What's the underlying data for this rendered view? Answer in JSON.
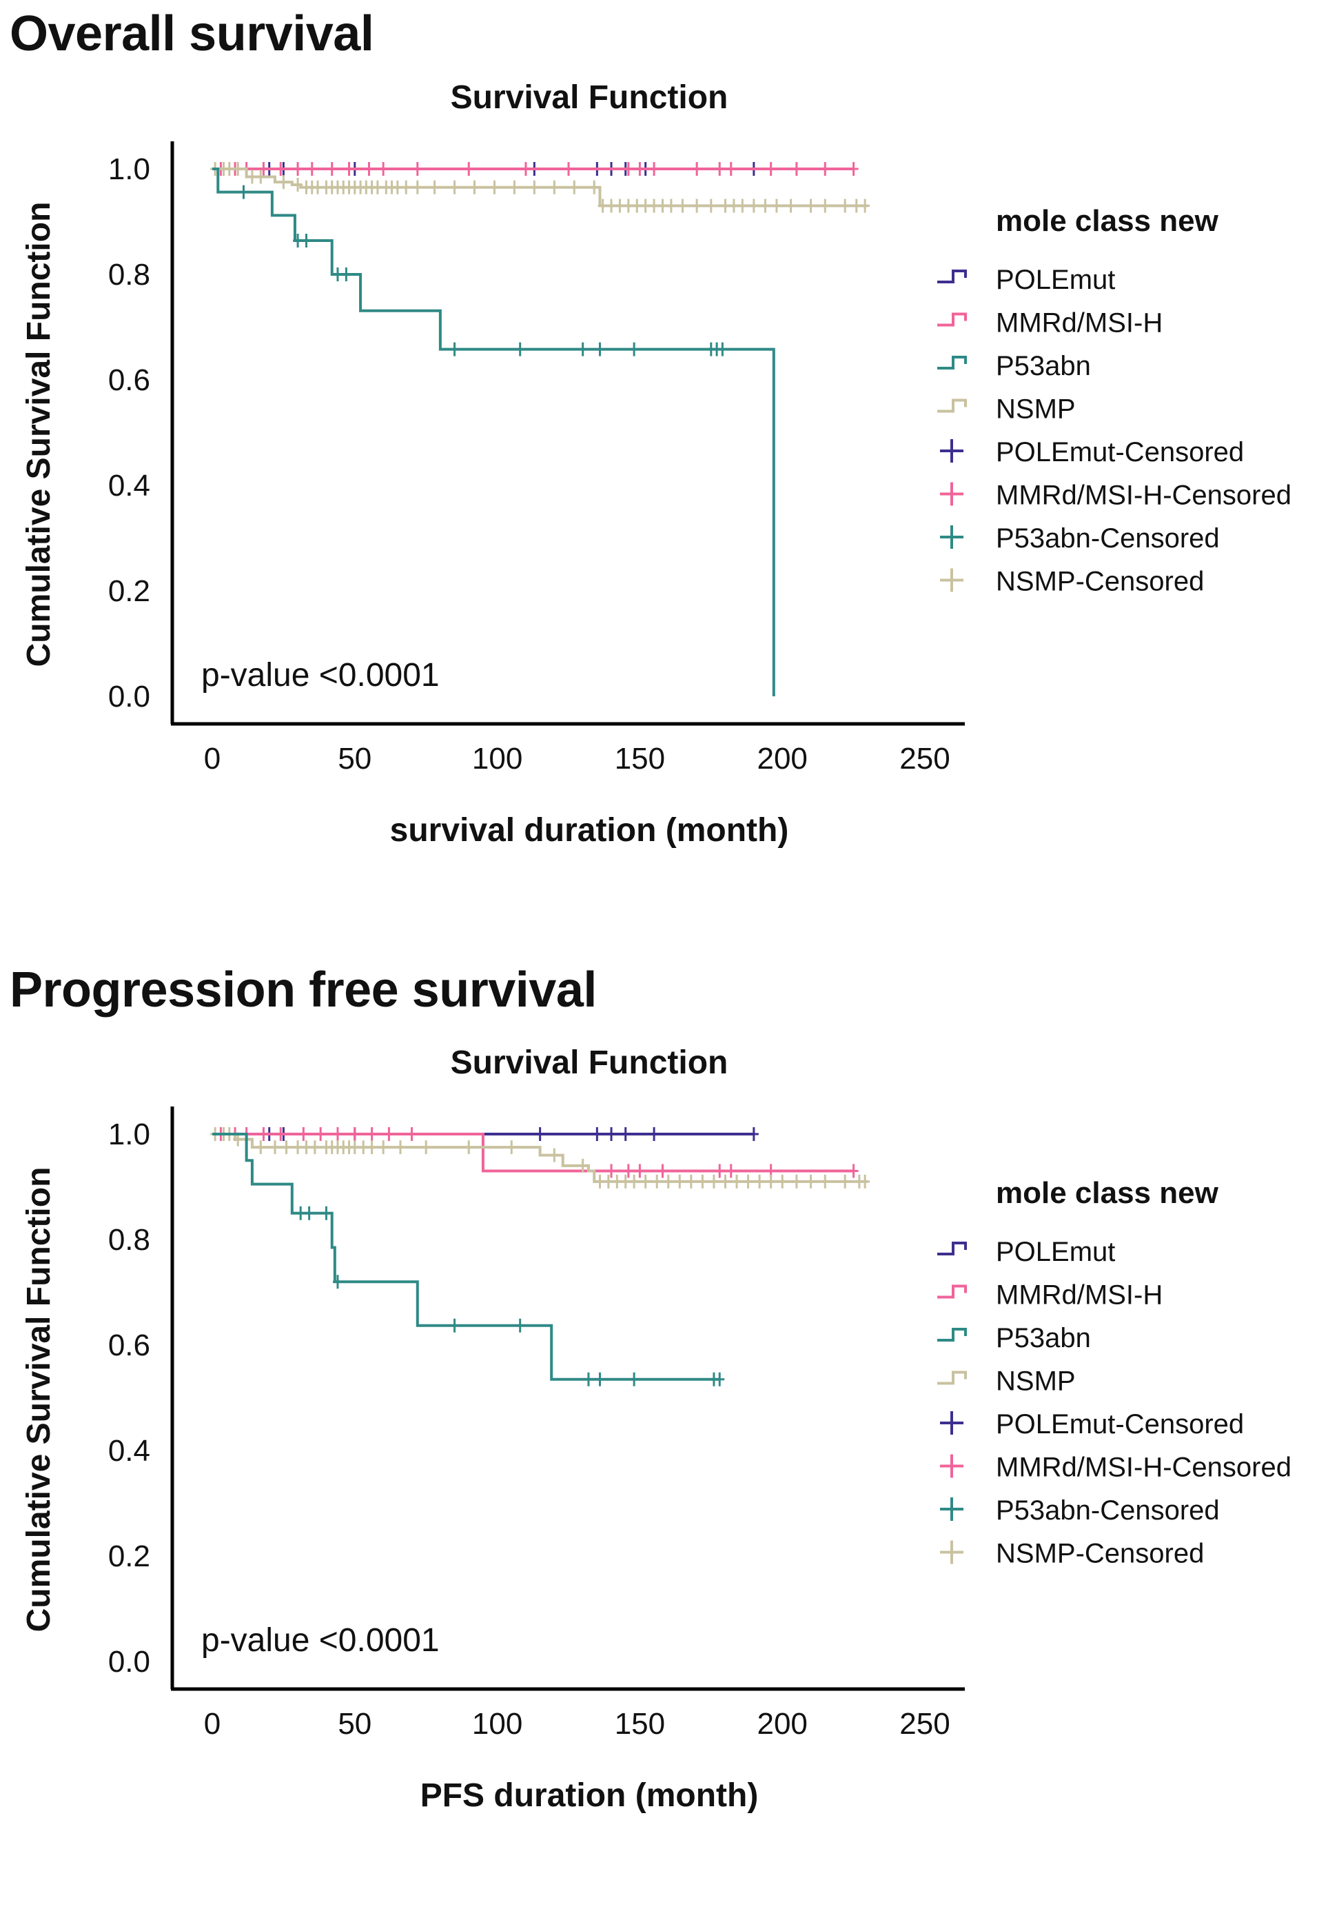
{
  "sections": [
    {
      "title": "Overall survival"
    },
    {
      "title": "Progression free survival"
    }
  ],
  "colors": {
    "POLEmut": "#3d2f8f",
    "MMRd/MSI-H": "#f0649a",
    "P53abn": "#2f8a86",
    "NSMP": "#c9c2a0"
  },
  "chart_data": [
    {
      "type": "line",
      "subtype": "kaplan-meier",
      "title": "Survival Function",
      "xlabel": "survival duration (month)",
      "ylabel": "Cumulative Survival Function",
      "xlim": [
        0,
        250
      ],
      "ylim": [
        0.0,
        1.0
      ],
      "xticks": [
        "0",
        "50",
        "100",
        "150",
        "200",
        "250"
      ],
      "yticks": [
        "0.0",
        "0.2",
        "0.4",
        "0.6",
        "0.8",
        "1.0"
      ],
      "annotation": "p-value <0.0001",
      "legend_title": "mole class new",
      "legend": [
        "POLEmut",
        "MMRd/MSI-H",
        "P53abn",
        "NSMP",
        "POLEmut-Censored",
        "MMRd/MSI-H-Censored",
        "P53abn-Censored",
        "NSMP-Censored"
      ],
      "series": [
        {
          "name": "POLEmut",
          "steps": [
            [
              0,
              1.0
            ],
            [
              190,
              1.0
            ]
          ],
          "censored": [
            20,
            25,
            50,
            113,
            135,
            140,
            145,
            152,
            190
          ]
        },
        {
          "name": "MMRd/MSI-H",
          "steps": [
            [
              0,
              1.0
            ],
            [
              225,
              1.0
            ]
          ],
          "censored": [
            3,
            8,
            12,
            18,
            24,
            30,
            35,
            42,
            48,
            55,
            60,
            72,
            90,
            110,
            125,
            146,
            150,
            155,
            170,
            178,
            182,
            196,
            205,
            215,
            225
          ]
        },
        {
          "name": "NSMP",
          "steps": [
            [
              0,
              1.0
            ],
            [
              12,
              0.985
            ],
            [
              22,
              0.975
            ],
            [
              28,
              0.97
            ],
            [
              31,
              0.965
            ],
            [
              136,
              0.93
            ],
            [
              230,
              0.93
            ]
          ],
          "censored": [
            1,
            4,
            6,
            9,
            14,
            17,
            25,
            30,
            33,
            35,
            37,
            40,
            42,
            44,
            46,
            48,
            50,
            52,
            54,
            56,
            58,
            61,
            63,
            65,
            68,
            72,
            78,
            85,
            92,
            99,
            106,
            113,
            120,
            127,
            134,
            137,
            140,
            143,
            146,
            149,
            152,
            155,
            158,
            161,
            165,
            170,
            175,
            180,
            183,
            186,
            190,
            194,
            198,
            203,
            210,
            215,
            222,
            226,
            229
          ]
        },
        {
          "name": "P53abn",
          "steps": [
            [
              0,
              1.0
            ],
            [
              2,
              0.956
            ],
            [
              21,
              0.912
            ],
            [
              29,
              0.864
            ],
            [
              42,
              0.8
            ],
            [
              52,
              0.731
            ],
            [
              80,
              0.658
            ],
            [
              197,
              0.658
            ],
            [
              197,
              0.0
            ]
          ],
          "censored": [
            11,
            30,
            33,
            44,
            47,
            85,
            108,
            130,
            136,
            148,
            175,
            177,
            179
          ]
        }
      ]
    },
    {
      "type": "line",
      "subtype": "kaplan-meier",
      "title": "Survival Function",
      "xlabel": "PFS duration (month)",
      "ylabel": "Cumulative Survival Function",
      "xlim": [
        0,
        250
      ],
      "ylim": [
        0.0,
        1.0
      ],
      "xticks": [
        "0",
        "50",
        "100",
        "150",
        "200",
        "250"
      ],
      "yticks": [
        "0.0",
        "0.2",
        "0.4",
        "0.6",
        "0.8",
        "1.0"
      ],
      "annotation": "p-value <0.0001",
      "legend_title": "mole class new",
      "legend": [
        "POLEmut",
        "MMRd/MSI-H",
        "P53abn",
        "NSMP",
        "POLEmut-Censored",
        "MMRd/MSI-H-Censored",
        "P53abn-Censored",
        "NSMP-Censored"
      ],
      "series": [
        {
          "name": "POLEmut",
          "steps": [
            [
              0,
              1.0
            ],
            [
              190,
              1.0
            ]
          ],
          "censored": [
            20,
            25,
            50,
            115,
            135,
            140,
            145,
            155,
            190
          ]
        },
        {
          "name": "MMRd/MSI-H",
          "steps": [
            [
              0,
              1.0
            ],
            [
              95,
              1.0
            ],
            [
              95,
              0.93
            ],
            [
              225,
              0.93
            ]
          ],
          "censored": [
            3,
            8,
            12,
            18,
            24,
            32,
            38,
            44,
            50,
            56,
            62,
            70,
            140,
            146,
            150,
            158,
            178,
            182,
            196,
            225
          ]
        },
        {
          "name": "NSMP",
          "steps": [
            [
              0,
              1.0
            ],
            [
              8,
              0.99
            ],
            [
              14,
              0.975
            ],
            [
              115,
              0.96
            ],
            [
              123,
              0.94
            ],
            [
              132,
              0.93
            ],
            [
              134,
              0.91
            ],
            [
              230,
              0.91
            ]
          ],
          "censored": [
            1,
            4,
            6,
            9,
            17,
            22,
            26,
            30,
            33,
            36,
            40,
            42,
            44,
            46,
            48,
            50,
            53,
            56,
            60,
            66,
            75,
            90,
            105,
            120,
            130,
            136,
            139,
            142,
            145,
            148,
            152,
            156,
            160,
            164,
            168,
            172,
            176,
            180,
            184,
            188,
            192,
            196,
            200,
            205,
            210,
            215,
            222,
            227,
            229
          ]
        },
        {
          "name": "P53abn",
          "steps": [
            [
              0,
              1.0
            ],
            [
              12,
              0.95
            ],
            [
              14,
              0.905
            ],
            [
              28,
              0.85
            ],
            [
              42,
              0.785
            ],
            [
              43,
              0.72
            ],
            [
              72,
              0.637
            ],
            [
              119,
              0.535
            ],
            [
              178,
              0.535
            ]
          ],
          "censored": [
            31,
            34,
            40,
            44,
            85,
            108,
            132,
            136,
            148,
            176,
            178
          ]
        }
      ]
    }
  ]
}
